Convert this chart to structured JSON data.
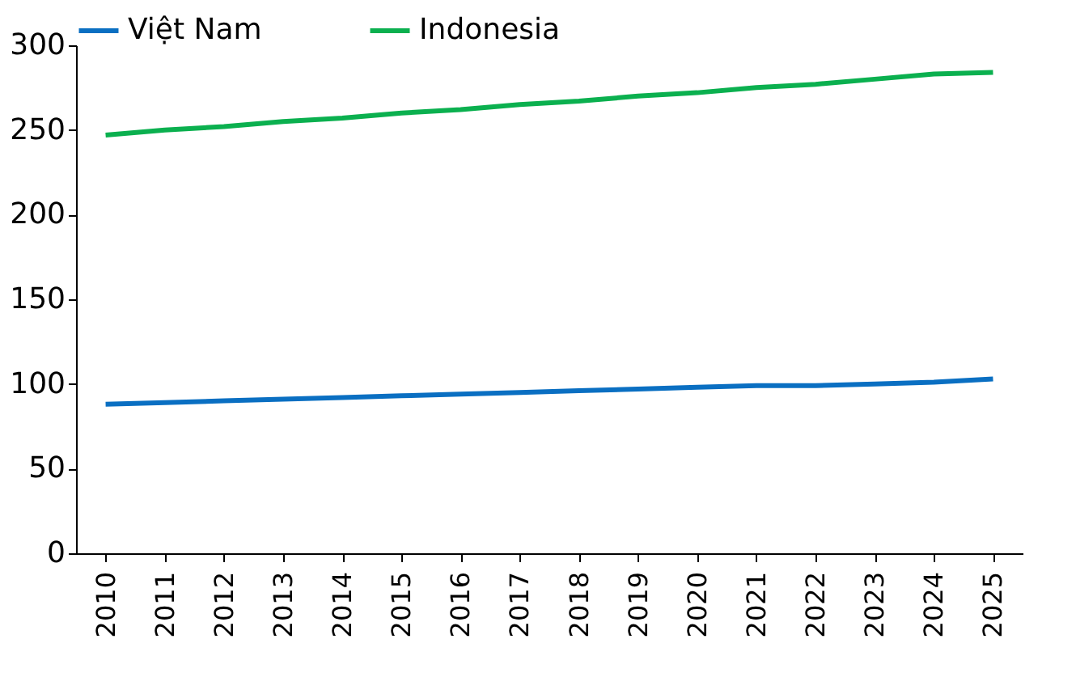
{
  "chart_data": {
    "type": "line",
    "categories": [
      "2010",
      "2011",
      "2012",
      "2013",
      "2014",
      "2015",
      "2016",
      "2017",
      "2018",
      "2019",
      "2020",
      "2021",
      "2022",
      "2023",
      "2024",
      "2025"
    ],
    "series": [
      {
        "name": "Việt Nam",
        "color": "#0a6fc2",
        "values": [
          88,
          89,
          90,
          91,
          92,
          93,
          94,
          95,
          96,
          97,
          98,
          99,
          99,
          100,
          101,
          103
        ]
      },
      {
        "name": "Indonesia",
        "color": "#0bb04f",
        "values": [
          247,
          250,
          252,
          255,
          257,
          260,
          262,
          265,
          267,
          270,
          272,
          275,
          277,
          280,
          283,
          284
        ]
      }
    ],
    "ylim": [
      0,
      300
    ],
    "yticks": [
      0,
      50,
      100,
      150,
      200,
      250,
      300
    ],
    "grid": false,
    "legend": "top",
    "marker": "none",
    "line_style": "solid"
  }
}
